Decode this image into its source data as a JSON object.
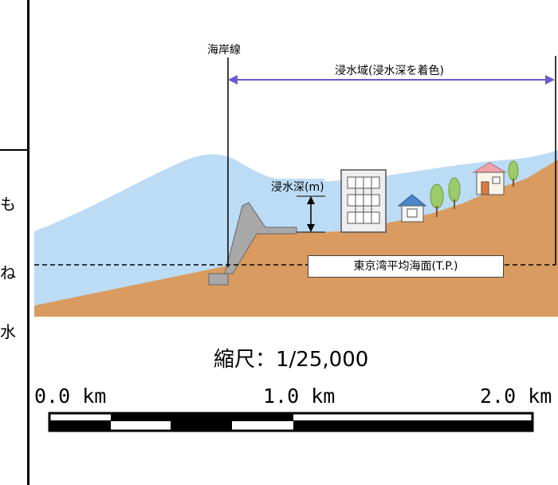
{
  "left_panel": {
    "chars": [
      "も",
      "ね",
      "水"
    ]
  },
  "diagram": {
    "coastline_label": "海岸線",
    "inundation_area_label": "浸水域(浸水深を着色)",
    "inundation_depth_label": "浸水深(m)",
    "mean_sea_level_label": "東京湾平均海面(T.P.)",
    "colors": {
      "water": "#bcdcf5",
      "ground": "#d99b5f",
      "arrow": "#6a5acd",
      "building": "#eeeeee",
      "tree": "#9ccc6a"
    }
  },
  "scale": {
    "title": "縮尺：1/25,000",
    "ticks": [
      "0.0 km",
      "1.0 km",
      "2.0 km"
    ]
  }
}
